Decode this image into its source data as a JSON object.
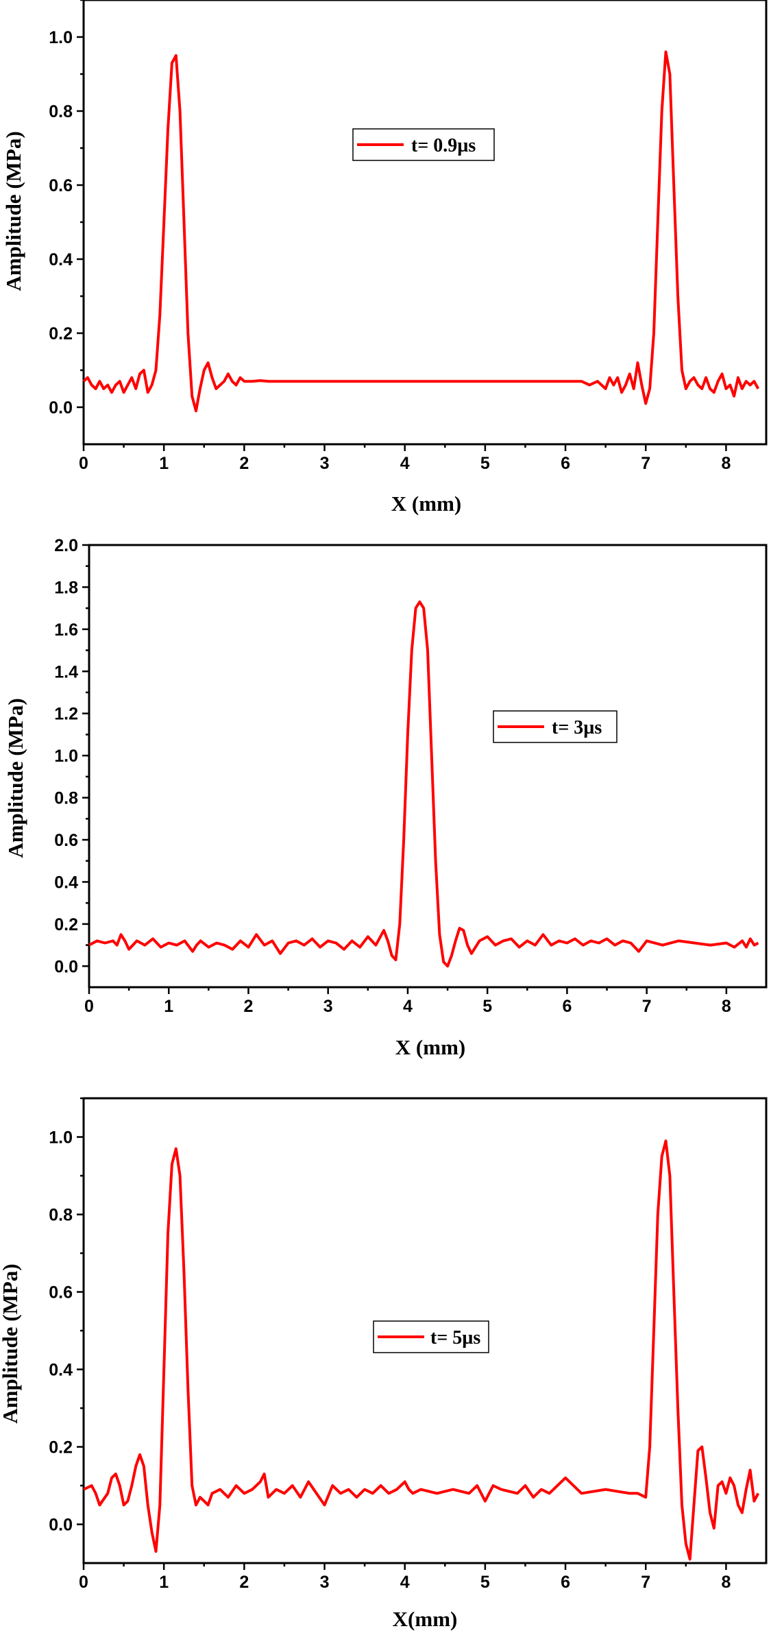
{
  "chart_data": [
    {
      "type": "line",
      "xlabel": "X (mm)",
      "ylabel": "Amplitude (MPa)",
      "xlim": [
        0,
        8.5
      ],
      "ylim": [
        -0.1,
        1.1
      ],
      "xticks": [
        "0",
        "1",
        "2",
        "3",
        "4",
        "5",
        "6",
        "7",
        "8"
      ],
      "yticks": [
        "0.0",
        "0.2",
        "0.4",
        "0.6",
        "0.8",
        "1.0"
      ],
      "legend_position": "upper-center",
      "grid": false,
      "series": [
        {
          "name": "t= 0.9µs",
          "color": "#ff0000",
          "x": [
            0,
            0.05,
            0.1,
            0.15,
            0.2,
            0.25,
            0.3,
            0.35,
            0.4,
            0.45,
            0.5,
            0.55,
            0.6,
            0.65,
            0.7,
            0.75,
            0.8,
            0.85,
            0.9,
            0.95,
            1.0,
            1.05,
            1.1,
            1.15,
            1.2,
            1.25,
            1.3,
            1.35,
            1.4,
            1.45,
            1.5,
            1.55,
            1.6,
            1.65,
            1.7,
            1.75,
            1.8,
            1.85,
            1.9,
            1.95,
            2.0,
            2.1,
            2.2,
            2.3,
            2.5,
            3.0,
            4.0,
            5.0,
            6.0,
            6.2,
            6.3,
            6.4,
            6.5,
            6.55,
            6.6,
            6.65,
            6.7,
            6.75,
            6.8,
            6.85,
            6.9,
            6.95,
            7.0,
            7.05,
            7.1,
            7.15,
            7.2,
            7.25,
            7.3,
            7.35,
            7.4,
            7.45,
            7.5,
            7.55,
            7.6,
            7.65,
            7.7,
            7.75,
            7.8,
            7.85,
            7.9,
            7.95,
            8.0,
            8.05,
            8.1,
            8.15,
            8.2,
            8.25,
            8.3,
            8.35,
            8.4
          ],
          "y": [
            0.07,
            0.08,
            0.06,
            0.05,
            0.07,
            0.05,
            0.06,
            0.04,
            0.06,
            0.07,
            0.04,
            0.06,
            0.08,
            0.05,
            0.09,
            0.1,
            0.04,
            0.06,
            0.1,
            0.25,
            0.5,
            0.75,
            0.93,
            0.95,
            0.8,
            0.5,
            0.2,
            0.03,
            -0.01,
            0.05,
            0.1,
            0.12,
            0.08,
            0.05,
            0.06,
            0.07,
            0.09,
            0.07,
            0.06,
            0.08,
            0.07,
            0.07,
            0.072,
            0.07,
            0.07,
            0.07,
            0.07,
            0.07,
            0.07,
            0.07,
            0.06,
            0.07,
            0.05,
            0.08,
            0.06,
            0.08,
            0.04,
            0.06,
            0.09,
            0.05,
            0.12,
            0.06,
            0.01,
            0.05,
            0.2,
            0.5,
            0.8,
            0.96,
            0.9,
            0.6,
            0.3,
            0.1,
            0.05,
            0.07,
            0.08,
            0.06,
            0.05,
            0.08,
            0.05,
            0.04,
            0.07,
            0.09,
            0.05,
            0.06,
            0.03,
            0.08,
            0.05,
            0.07,
            0.06,
            0.07,
            0.05
          ]
        }
      ]
    },
    {
      "type": "line",
      "xlabel": "X (mm)",
      "ylabel": "Amplitude (MPa)",
      "xlim": [
        0,
        8.5
      ],
      "ylim": [
        -0.1,
        2.0
      ],
      "xticks": [
        "0",
        "1",
        "2",
        "3",
        "4",
        "5",
        "6",
        "7",
        "8"
      ],
      "yticks": [
        "0.0",
        "0.2",
        "0.4",
        "0.6",
        "0.8",
        "1.0",
        "1.2",
        "1.4",
        "1.6",
        "1.8",
        "2.0"
      ],
      "legend_position": "right-center",
      "grid": false,
      "series": [
        {
          "name": "t= 3µs",
          "color": "#ff0000",
          "x": [
            0,
            0.1,
            0.2,
            0.3,
            0.35,
            0.4,
            0.45,
            0.5,
            0.6,
            0.7,
            0.8,
            0.9,
            1.0,
            1.1,
            1.2,
            1.3,
            1.35,
            1.4,
            1.5,
            1.6,
            1.7,
            1.8,
            1.9,
            2.0,
            2.1,
            2.2,
            2.3,
            2.4,
            2.5,
            2.6,
            2.7,
            2.8,
            2.9,
            3.0,
            3.1,
            3.2,
            3.3,
            3.4,
            3.5,
            3.6,
            3.7,
            3.75,
            3.8,
            3.85,
            3.9,
            3.95,
            4.0,
            4.05,
            4.1,
            4.15,
            4.2,
            4.25,
            4.3,
            4.35,
            4.4,
            4.45,
            4.5,
            4.55,
            4.6,
            4.65,
            4.7,
            4.75,
            4.8,
            4.9,
            5.0,
            5.1,
            5.2,
            5.3,
            5.4,
            5.5,
            5.6,
            5.7,
            5.8,
            5.9,
            6.0,
            6.1,
            6.2,
            6.3,
            6.4,
            6.5,
            6.6,
            6.7,
            6.8,
            6.9,
            7.0,
            7.2,
            7.4,
            7.6,
            7.8,
            8.0,
            8.1,
            8.2,
            8.25,
            8.3,
            8.35,
            8.4
          ],
          "y": [
            0.1,
            0.12,
            0.11,
            0.12,
            0.1,
            0.15,
            0.12,
            0.08,
            0.12,
            0.1,
            0.13,
            0.09,
            0.11,
            0.1,
            0.12,
            0.07,
            0.1,
            0.12,
            0.09,
            0.11,
            0.1,
            0.08,
            0.12,
            0.09,
            0.15,
            0.1,
            0.12,
            0.06,
            0.11,
            0.12,
            0.1,
            0.13,
            0.09,
            0.12,
            0.11,
            0.08,
            0.12,
            0.09,
            0.14,
            0.1,
            0.17,
            0.12,
            0.05,
            0.03,
            0.2,
            0.6,
            1.1,
            1.5,
            1.7,
            1.73,
            1.7,
            1.5,
            1.0,
            0.5,
            0.15,
            0.02,
            0.0,
            0.05,
            0.12,
            0.18,
            0.17,
            0.1,
            0.06,
            0.12,
            0.14,
            0.1,
            0.12,
            0.13,
            0.09,
            0.12,
            0.1,
            0.15,
            0.1,
            0.12,
            0.11,
            0.13,
            0.1,
            0.12,
            0.11,
            0.13,
            0.1,
            0.12,
            0.11,
            0.07,
            0.12,
            0.1,
            0.12,
            0.11,
            0.1,
            0.11,
            0.09,
            0.12,
            0.09,
            0.13,
            0.1,
            0.11
          ]
        }
      ]
    },
    {
      "type": "line",
      "xlabel": "X(mm)",
      "ylabel": "Amplitude (MPa)",
      "xlim": [
        0,
        8.5
      ],
      "ylim": [
        -0.1,
        1.1
      ],
      "xticks": [
        "0",
        "1",
        "2",
        "3",
        "4",
        "5",
        "6",
        "7",
        "8"
      ],
      "yticks": [
        "0.0",
        "0.2",
        "0.4",
        "0.6",
        "0.8",
        "1.0"
      ],
      "legend_position": "center",
      "grid": false,
      "series": [
        {
          "name": "t= 5µs",
          "color": "#ff0000",
          "x": [
            0,
            0.1,
            0.15,
            0.2,
            0.3,
            0.35,
            0.4,
            0.45,
            0.5,
            0.55,
            0.6,
            0.65,
            0.7,
            0.75,
            0.8,
            0.85,
            0.9,
            0.95,
            1.0,
            1.05,
            1.1,
            1.15,
            1.2,
            1.25,
            1.3,
            1.35,
            1.4,
            1.45,
            1.5,
            1.55,
            1.6,
            1.7,
            1.8,
            1.9,
            2.0,
            2.1,
            2.2,
            2.25,
            2.3,
            2.4,
            2.5,
            2.6,
            2.7,
            2.8,
            2.9,
            3.0,
            3.1,
            3.2,
            3.3,
            3.4,
            3.5,
            3.6,
            3.7,
            3.8,
            3.9,
            4.0,
            4.05,
            4.1,
            4.2,
            4.4,
            4.6,
            4.8,
            4.9,
            5.0,
            5.1,
            5.2,
            5.4,
            5.5,
            5.6,
            5.7,
            5.8,
            6.0,
            6.2,
            6.5,
            6.8,
            6.9,
            7.0,
            7.05,
            7.1,
            7.15,
            7.2,
            7.25,
            7.3,
            7.35,
            7.4,
            7.45,
            7.5,
            7.55,
            7.6,
            7.65,
            7.7,
            7.75,
            7.8,
            7.85,
            7.9,
            7.95,
            8.0,
            8.05,
            8.1,
            8.15,
            8.2,
            8.25,
            8.3,
            8.35,
            8.4
          ],
          "y": [
            0.09,
            0.1,
            0.08,
            0.05,
            0.08,
            0.12,
            0.13,
            0.1,
            0.05,
            0.06,
            0.1,
            0.15,
            0.18,
            0.15,
            0.05,
            -0.02,
            -0.07,
            0.05,
            0.4,
            0.75,
            0.93,
            0.97,
            0.9,
            0.65,
            0.35,
            0.1,
            0.05,
            0.07,
            0.06,
            0.05,
            0.08,
            0.09,
            0.07,
            0.1,
            0.08,
            0.09,
            0.11,
            0.13,
            0.07,
            0.09,
            0.08,
            0.1,
            0.07,
            0.11,
            0.08,
            0.05,
            0.1,
            0.08,
            0.09,
            0.07,
            0.09,
            0.08,
            0.1,
            0.08,
            0.09,
            0.11,
            0.09,
            0.08,
            0.09,
            0.08,
            0.09,
            0.08,
            0.1,
            0.06,
            0.1,
            0.09,
            0.08,
            0.1,
            0.07,
            0.09,
            0.08,
            0.12,
            0.08,
            0.09,
            0.08,
            0.08,
            0.07,
            0.2,
            0.5,
            0.8,
            0.95,
            0.99,
            0.9,
            0.6,
            0.3,
            0.05,
            -0.05,
            -0.09,
            0.05,
            0.19,
            0.2,
            0.12,
            0.03,
            -0.01,
            0.1,
            0.11,
            0.08,
            0.12,
            0.1,
            0.05,
            0.03,
            0.09,
            0.14,
            0.06,
            0.08
          ]
        }
      ]
    }
  ]
}
